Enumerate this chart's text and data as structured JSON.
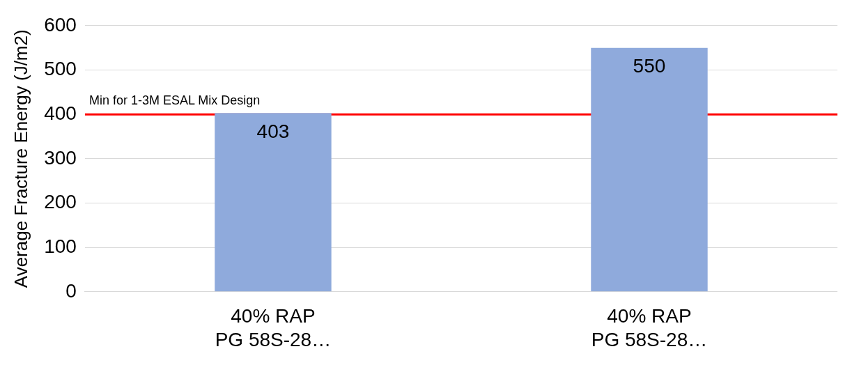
{
  "chart_data": {
    "type": "bar",
    "categories": [
      "40% RAP\nPG 58S-28…",
      "40% RAP\nPG 58S-28…"
    ],
    "values": [
      403,
      550
    ],
    "color": "#8faadc",
    "ylabel": "Average Fracture Energy (J/m2)",
    "ylim": [
      0,
      600
    ],
    "yticks": [
      0,
      100,
      200,
      300,
      400,
      500,
      600
    ],
    "grid": "y",
    "legend": false,
    "data_labels": true,
    "ref_lines": [
      {
        "axis": "y",
        "value": 400,
        "label": "Min for 1-3M ESAL Mix Design",
        "color": "#ff0000"
      }
    ]
  }
}
